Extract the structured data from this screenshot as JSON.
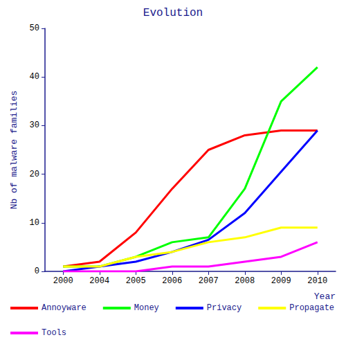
{
  "chart_data": {
    "type": "line",
    "title": "Evolution",
    "x_label": "Year",
    "y_label": "Nb of malware families",
    "categories": [
      "2000",
      "2004",
      "2005",
      "2006",
      "2007",
      "2008",
      "2009",
      "2010"
    ],
    "series": [
      {
        "name": "Annoyware",
        "color": "#ff0000",
        "values": [
          1,
          2,
          8,
          17,
          25,
          28,
          29,
          29
        ]
      },
      {
        "name": "Money",
        "color": "#00ff00",
        "values": [
          1,
          1,
          3,
          6,
          7,
          17,
          35,
          42
        ]
      },
      {
        "name": "Privacy",
        "color": "#0000ff",
        "values": [
          0,
          1,
          2,
          4,
          6.5,
          12,
          20.5,
          29
        ]
      },
      {
        "name": "Propagate",
        "color": "#ffff00",
        "values": [
          1,
          1,
          3,
          4,
          6,
          7,
          9,
          9
        ]
      },
      {
        "name": "Tools",
        "color": "#ff00ff",
        "values": [
          0,
          0,
          0,
          1,
          1,
          2,
          3,
          6
        ]
      }
    ],
    "ylim": [
      0,
      50
    ],
    "yticks": [
      0,
      10,
      20,
      30,
      40,
      50
    ],
    "grid": false,
    "legend": "bottom"
  }
}
